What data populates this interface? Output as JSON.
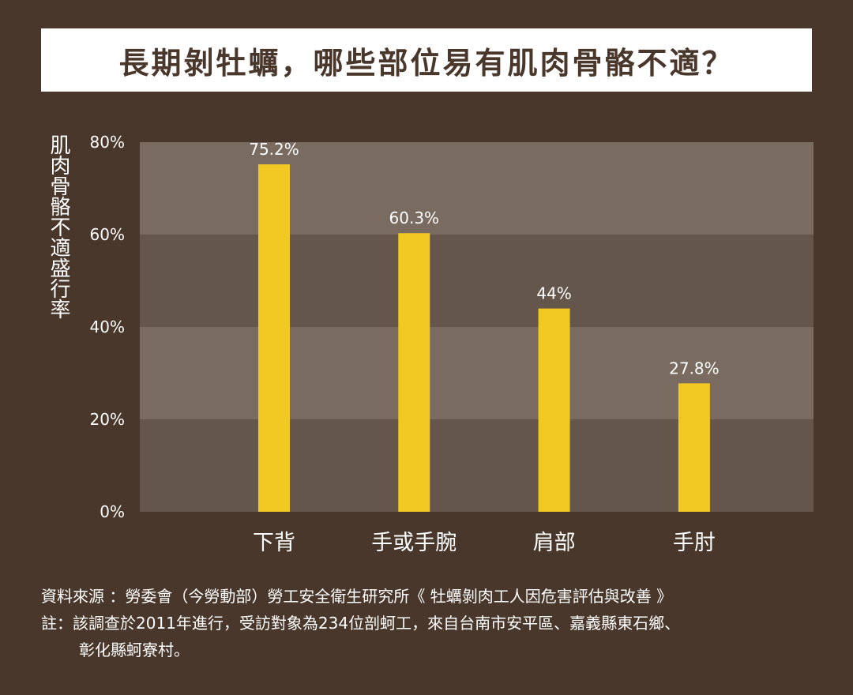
{
  "title": "長期剝牡蠣，哪些部位易有肌肉骨骼不適？",
  "ylabel": "肌肉骨骼不適盛行率",
  "chart_data": {
    "type": "bar",
    "categories": [
      "下背",
      "手或手腕",
      "肩部",
      "手肘"
    ],
    "values": [
      75.2,
      60.3,
      44,
      27.8
    ],
    "value_labels": [
      "75.2%",
      "60.3%",
      "44%",
      "27.8%"
    ],
    "yticks": [
      0,
      20,
      40,
      60,
      80
    ],
    "ytick_labels": [
      "0%",
      "20%",
      "40%",
      "60%",
      "80%"
    ],
    "ylim": [
      0,
      80
    ],
    "ylabel": "肌肉骨骼不適盛行率",
    "grid": "alternating bands",
    "colors": {
      "bar": "#f2c922",
      "band_light": "#7a6b60",
      "band_dark": "#65564b",
      "background": "#4a372b"
    }
  },
  "notes": {
    "source": "資料來源 ：勞委會（今勞動部）勞工安全衛生研究所《 牡蠣剝肉工人因危害評估與改善 》",
    "note_line1": "註：該調查於2011年進行，受訪對象為234位剖蚵工，來自台南市安平區、嘉義縣東石鄉、",
    "note_line2": "彰化縣蚵寮村。"
  }
}
